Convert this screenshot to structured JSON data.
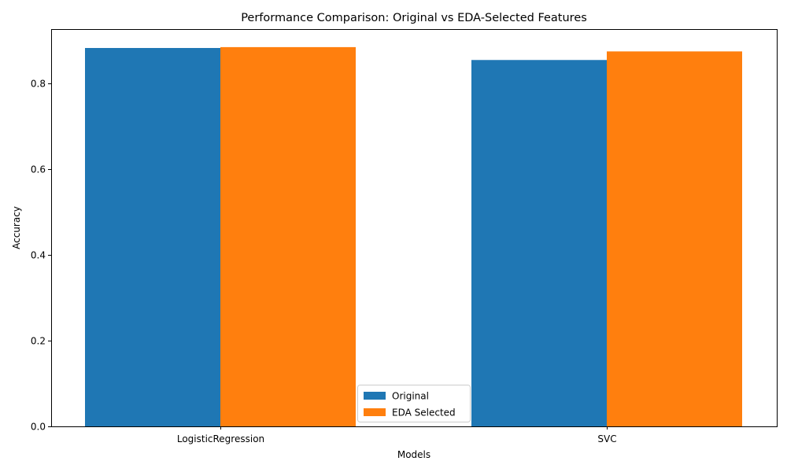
{
  "chart_data": {
    "type": "bar",
    "title": "Performance Comparison: Original vs EDA-Selected Features",
    "xlabel": "Models",
    "ylabel": "Accuracy",
    "categories": [
      "LogisticRegression",
      "SVC"
    ],
    "series": [
      {
        "name": "Original",
        "values": [
          0.882,
          0.854
        ],
        "color": "#1f77b4"
      },
      {
        "name": "EDA Selected",
        "values": [
          0.884,
          0.874
        ],
        "color": "#ff7f0e"
      }
    ],
    "ylim": [
      0,
      0.926
    ],
    "yticks": [
      0.0,
      0.2,
      0.4,
      0.6,
      0.8
    ],
    "ytick_labels": [
      "0.0",
      "0.2",
      "0.4",
      "0.6",
      "0.8"
    ],
    "grid": false,
    "legend_position": "bottom-center"
  }
}
